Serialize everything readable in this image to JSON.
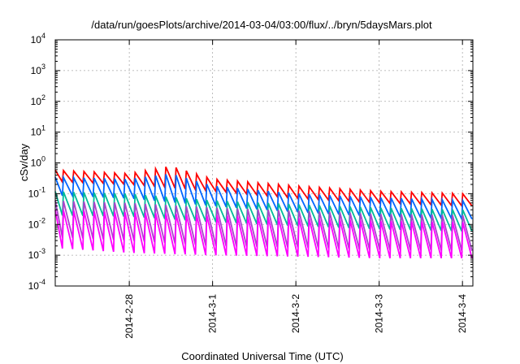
{
  "chart_data": {
    "type": "line",
    "title": "/data/run/goesPlots/archive/2014-03-04/03:00/flux/../bryn/5daysMars.plot",
    "xlabel": "Coordinated Universal Time (UTC)",
    "ylabel": "cSv/day",
    "y_scale": "log",
    "ylim": [
      0.0001,
      10000
    ],
    "y_ticks": [
      {
        "base": "10",
        "exp": "-4",
        "value": 0.0001
      },
      {
        "base": "10",
        "exp": "-3",
        "value": 0.001
      },
      {
        "base": "10",
        "exp": "-2",
        "value": 0.01
      },
      {
        "base": "10",
        "exp": "-1",
        "value": 0.1
      },
      {
        "base": "10",
        "exp": "0",
        "value": 1
      },
      {
        "base": "10",
        "exp": "1",
        "value": 10
      },
      {
        "base": "10",
        "exp": "2",
        "value": 100
      },
      {
        "base": "10",
        "exp": "3",
        "value": 1000
      },
      {
        "base": "10",
        "exp": "4",
        "value": 10000
      }
    ],
    "xlim": [
      "2014-02-27 02:40",
      "2014-03-04 03:00"
    ],
    "x_ticks": [
      "2014-2-28",
      "2014-3-1",
      "2014-3-2",
      "2014-3-3",
      "2014-3-4"
    ],
    "grid": true,
    "legend": "none",
    "period_hours": 2.95,
    "series": [
      {
        "color": "#ff0000",
        "peaks_by_day": [
          [
            "2014-02-27",
            0.6
          ],
          [
            "2014-02-28",
            0.45
          ],
          [
            "2014-02-28 12:00",
            0.8
          ],
          [
            "2014-03-01",
            0.3
          ],
          [
            "2014-03-02",
            0.18
          ],
          [
            "2014-03-03",
            0.12
          ],
          [
            "2014-03-04",
            0.1
          ]
        ],
        "troughs_by_day": [
          [
            "2014-02-27",
            0.25
          ],
          [
            "2014-02-28",
            0.2
          ],
          [
            "2014-03-01",
            0.12
          ],
          [
            "2014-03-02",
            0.07
          ],
          [
            "2014-03-03",
            0.05
          ],
          [
            "2014-03-04",
            0.04
          ]
        ]
      },
      {
        "color": "#0066ff",
        "peaks_by_day": [
          [
            "2014-02-27",
            0.35
          ],
          [
            "2014-02-28",
            0.3
          ],
          [
            "2014-02-28 12:00",
            0.45
          ],
          [
            "2014-03-01",
            0.18
          ],
          [
            "2014-03-02",
            0.1
          ],
          [
            "2014-03-03",
            0.075
          ],
          [
            "2014-03-04",
            0.06
          ]
        ],
        "troughs_by_day": [
          [
            "2014-02-27",
            0.09
          ],
          [
            "2014-02-28",
            0.07
          ],
          [
            "2014-03-01",
            0.04
          ],
          [
            "2014-03-02",
            0.025
          ],
          [
            "2014-03-03",
            0.018
          ],
          [
            "2014-03-04",
            0.015
          ]
        ]
      },
      {
        "color": "#00bb99",
        "peaks_by_day": [
          [
            "2014-02-27",
            0.12
          ],
          [
            "2014-02-28",
            0.1
          ],
          [
            "2014-03-01",
            0.06
          ],
          [
            "2014-03-02",
            0.045
          ],
          [
            "2014-03-03",
            0.035
          ],
          [
            "2014-03-04",
            0.03
          ]
        ],
        "troughs_by_day": [
          [
            "2014-02-27",
            0.02
          ],
          [
            "2014-02-28",
            0.018
          ],
          [
            "2014-03-01",
            0.012
          ],
          [
            "2014-03-02",
            0.009
          ],
          [
            "2014-03-03",
            0.007
          ],
          [
            "2014-03-04",
            0.006
          ]
        ]
      },
      {
        "color": "#aa44cc",
        "peaks_by_day": [
          [
            "2014-02-27",
            0.06
          ],
          [
            "2014-02-28",
            0.05
          ],
          [
            "2014-03-01",
            0.035
          ],
          [
            "2014-03-02",
            0.028
          ],
          [
            "2014-03-03",
            0.022
          ],
          [
            "2014-03-04",
            0.02
          ]
        ],
        "troughs_by_day": [
          [
            "2014-02-27",
            0.004
          ],
          [
            "2014-02-28",
            0.003
          ],
          [
            "2014-03-01",
            0.002
          ],
          [
            "2014-03-02",
            0.0018
          ],
          [
            "2014-03-03",
            0.0015
          ],
          [
            "2014-03-04",
            0.0014
          ]
        ]
      },
      {
        "color": "#ff00ff",
        "peaks_by_day": [
          [
            "2014-02-27",
            0.03
          ],
          [
            "2014-02-28",
            0.025
          ],
          [
            "2014-03-01",
            0.02
          ],
          [
            "2014-03-02",
            0.016
          ],
          [
            "2014-03-03",
            0.013
          ],
          [
            "2014-03-04",
            0.012
          ]
        ],
        "troughs_by_day": [
          [
            "2014-02-27",
            0.0018
          ],
          [
            "2014-02-28",
            0.0012
          ],
          [
            "2014-03-01",
            0.001
          ],
          [
            "2014-03-02",
            0.0009
          ],
          [
            "2014-03-03",
            0.0008
          ],
          [
            "2014-03-04",
            0.0008
          ]
        ]
      }
    ]
  }
}
